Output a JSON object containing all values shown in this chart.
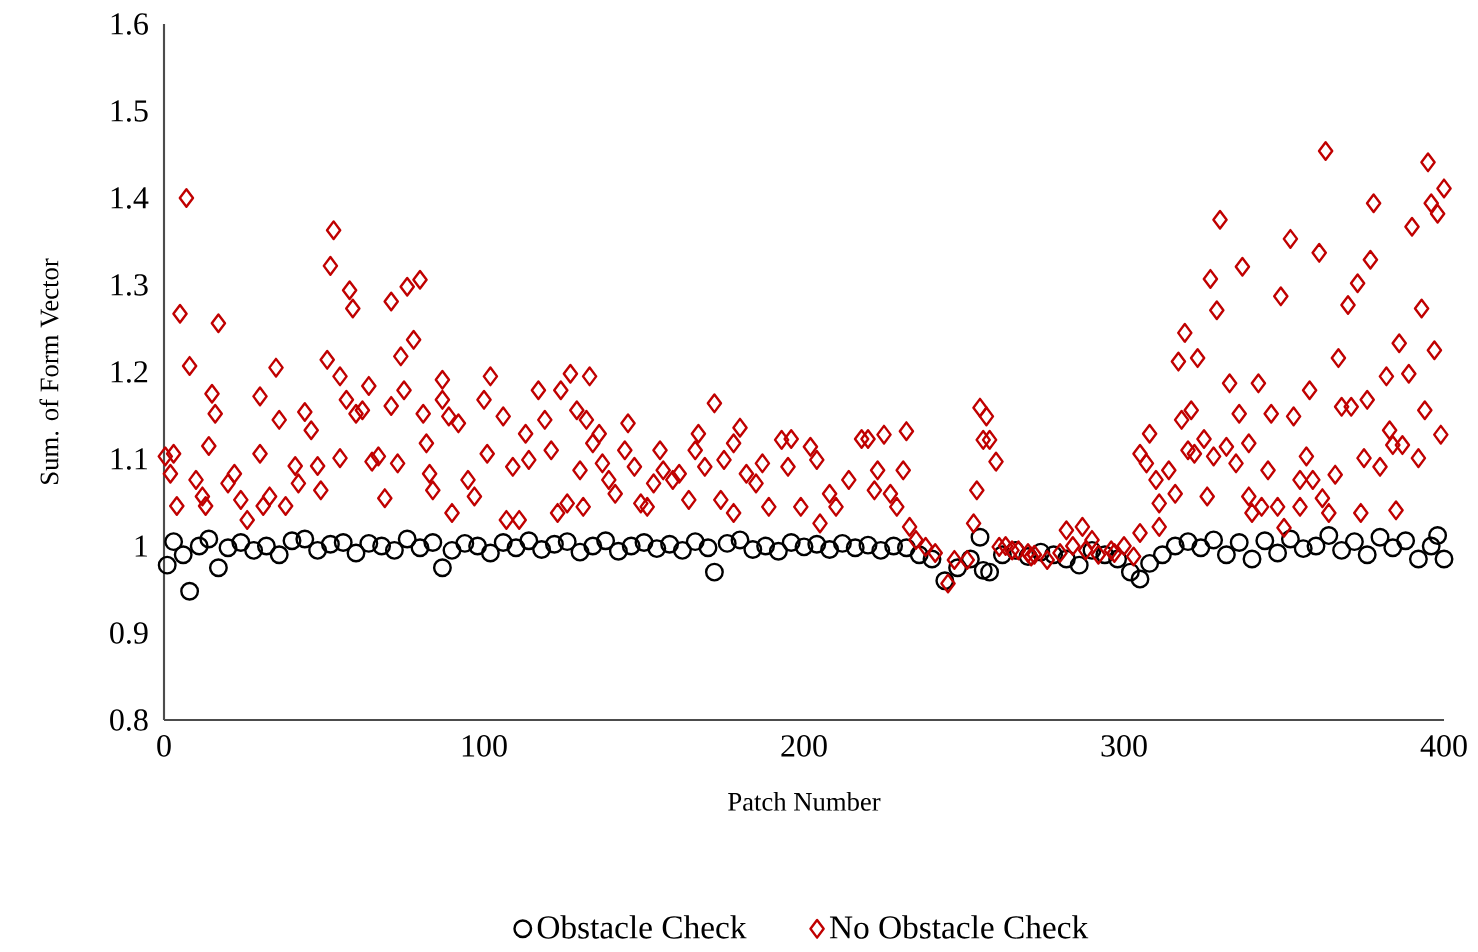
{
  "chart_data": {
    "type": "scatter",
    "xlabel": "Patch Number",
    "ylabel": "Sum. of Form Vector",
    "xlim": [
      0,
      400
    ],
    "ylim": [
      0.8,
      1.6
    ],
    "xticks": [
      0,
      100,
      200,
      300,
      400
    ],
    "yticks": [
      0.8,
      0.9,
      1,
      1.1,
      1.2,
      1.3,
      1.4,
      1.5,
      1.6
    ],
    "grid": false,
    "legend": "bottom",
    "series": [
      {
        "name": "Obstacle Check",
        "color": "#000000",
        "marker": "circle",
        "x": [
          1,
          3,
          6,
          8,
          11,
          14,
          17,
          20,
          24,
          28,
          32,
          36,
          40,
          44,
          48,
          52,
          56,
          60,
          64,
          68,
          72,
          76,
          80,
          84,
          87,
          90,
          94,
          98,
          102,
          106,
          110,
          114,
          118,
          122,
          126,
          130,
          134,
          138,
          142,
          146,
          150,
          154,
          158,
          162,
          166,
          170,
          172,
          176,
          180,
          184,
          188,
          192,
          196,
          200,
          204,
          208,
          212,
          216,
          220,
          224,
          228,
          232,
          236,
          240,
          244,
          248,
          252,
          255,
          256,
          258,
          262,
          266,
          270,
          274,
          278,
          282,
          286,
          290,
          294,
          298,
          302,
          305,
          308,
          312,
          316,
          320,
          324,
          328,
          332,
          336,
          340,
          344,
          348,
          352,
          356,
          360,
          364,
          368,
          372,
          376,
          380,
          384,
          388,
          392,
          396,
          398,
          400
        ],
        "values": [
          0.978,
          1.005,
          0.99,
          0.948,
          1.0,
          1.008,
          0.975,
          0.998,
          1.004,
          0.995,
          1.0,
          0.99,
          1.006,
          1.008,
          0.995,
          1.002,
          1.004,
          0.992,
          1.003,
          1.0,
          0.995,
          1.008,
          0.998,
          1.004,
          0.975,
          0.995,
          1.003,
          1.0,
          0.992,
          1.004,
          0.998,
          1.006,
          0.996,
          1.002,
          1.005,
          0.993,
          1.0,
          1.006,
          0.994,
          1.0,
          1.004,
          0.997,
          1.002,
          0.995,
          1.005,
          0.998,
          0.97,
          1.003,
          1.007,
          0.996,
          1.0,
          0.994,
          1.004,
          0.999,
          1.002,
          0.996,
          1.003,
          0.998,
          1.001,
          0.995,
          1.0,
          0.998,
          0.99,
          0.985,
          0.96,
          0.975,
          0.985,
          1.01,
          0.972,
          0.97,
          0.99,
          0.995,
          0.988,
          0.993,
          0.99,
          0.985,
          0.978,
          0.995,
          0.99,
          0.985,
          0.97,
          0.962,
          0.98,
          0.99,
          1.0,
          1.005,
          0.998,
          1.007,
          0.99,
          1.004,
          0.985,
          1.006,
          0.992,
          1.008,
          0.997,
          1.0,
          1.012,
          0.995,
          1.005,
          0.99,
          1.01,
          0.998,
          1.006,
          0.985,
          1.0,
          1.012,
          0.985
        ]
      },
      {
        "name": "No Obstacle Check",
        "color": "#c00000",
        "marker": "diamond",
        "x": [
          0.4,
          3,
          2,
          5,
          7,
          8,
          4,
          10,
          12,
          13,
          14,
          15,
          17,
          16,
          20,
          22,
          24,
          26,
          30,
          30,
          31,
          33,
          35,
          36,
          38,
          41,
          42,
          44,
          46,
          48,
          49,
          51,
          52,
          53,
          55,
          55,
          57,
          58,
          59,
          60,
          62,
          64,
          65,
          67,
          69,
          71,
          71,
          73,
          74,
          75,
          76,
          78,
          80,
          81,
          82,
          83,
          84,
          87,
          87,
          89,
          90,
          92,
          95,
          97,
          100,
          101,
          102,
          106,
          107,
          109,
          111,
          113,
          114,
          117,
          119,
          121,
          123,
          124,
          126,
          127,
          129,
          130,
          133,
          132,
          134,
          136,
          137,
          131,
          139,
          141,
          144,
          145,
          147,
          149,
          151,
          153,
          155,
          156,
          159,
          161,
          164,
          166,
          167,
          169,
          172,
          174,
          175,
          178,
          178,
          180,
          182,
          185,
          187,
          189,
          193,
          195,
          196,
          199,
          202,
          204,
          205,
          208,
          210,
          214,
          218,
          220,
          222,
          223,
          225,
          227,
          229,
          231,
          232,
          233,
          235,
          238,
          241,
          245,
          247,
          251,
          253,
          254,
          255,
          256,
          257,
          258,
          260,
          261,
          263,
          265,
          267,
          270,
          271,
          272,
          276,
          280,
          282,
          284,
          287,
          288,
          290,
          292,
          296,
          297,
          300,
          303,
          305,
          305,
          307,
          308,
          310,
          311,
          311,
          314,
          316,
          317,
          319,
          318,
          321,
          323,
          320,
          322,
          325,
          326,
          327,
          329,
          328,
          330,
          332,
          333,
          335,
          336,
          337,
          339,
          339,
          340,
          342,
          343,
          345,
          346,
          348,
          349,
          350,
          352,
          353,
          355,
          355,
          357,
          358,
          359,
          361,
          362,
          363,
          364,
          366,
          367,
          368,
          370,
          371,
          373,
          374,
          376,
          375,
          377,
          378,
          380,
          382,
          383,
          384,
          385,
          386,
          387,
          389,
          390,
          392,
          393,
          394,
          395,
          396,
          397,
          398,
          399,
          400
        ],
        "values": [
          1.103,
          1.106,
          1.083,
          1.267,
          1.4,
          1.207,
          1.046,
          1.076,
          1.057,
          1.046,
          1.115,
          1.175,
          1.256,
          1.152,
          1.072,
          1.083,
          1.053,
          1.03,
          1.172,
          1.106,
          1.046,
          1.057,
          1.205,
          1.145,
          1.046,
          1.092,
          1.072,
          1.154,
          1.133,
          1.092,
          1.064,
          1.214,
          1.322,
          1.363,
          1.195,
          1.101,
          1.168,
          1.294,
          1.273,
          1.152,
          1.156,
          1.184,
          1.097,
          1.103,
          1.055,
          1.281,
          1.161,
          1.095,
          1.218,
          1.179,
          1.298,
          1.237,
          1.306,
          1.152,
          1.118,
          1.083,
          1.064,
          1.191,
          1.168,
          1.149,
          1.038,
          1.141,
          1.076,
          1.057,
          1.168,
          1.106,
          1.195,
          1.149,
          1.03,
          1.091,
          1.03,
          1.129,
          1.099,
          1.179,
          1.145,
          1.11,
          1.038,
          1.179,
          1.049,
          1.198,
          1.156,
          1.087,
          1.195,
          1.145,
          1.118,
          1.129,
          1.095,
          1.045,
          1.076,
          1.06,
          1.11,
          1.141,
          1.091,
          1.049,
          1.045,
          1.072,
          1.11,
          1.087,
          1.076,
          1.083,
          1.053,
          1.11,
          1.129,
          1.091,
          1.164,
          1.053,
          1.099,
          1.118,
          1.038,
          1.136,
          1.083,
          1.072,
          1.095,
          1.045,
          1.122,
          1.091,
          1.123,
          1.045,
          1.114,
          1.099,
          1.026,
          1.06,
          1.045,
          1.076,
          1.123,
          1.123,
          1.064,
          1.087,
          1.128,
          1.06,
          1.045,
          1.087,
          1.132,
          1.022,
          1.007,
          0.999,
          0.992,
          0.957,
          0.984,
          0.984,
          1.026,
          1.064,
          1.159,
          1.122,
          1.149,
          1.122,
          1.097,
          0.999,
          1.0,
          0.995,
          0.995,
          0.992,
          0.988,
          0.99,
          0.984,
          0.992,
          1.018,
          1.0,
          1.022,
          0.995,
          1.007,
          0.99,
          0.995,
          0.992,
          1.0,
          0.988,
          1.015,
          1.106,
          1.095,
          1.129,
          1.076,
          1.049,
          1.022,
          1.087,
          1.06,
          1.212,
          1.245,
          1.145,
          1.156,
          1.216,
          1.11,
          1.106,
          1.123,
          1.057,
          1.307,
          1.271,
          1.103,
          1.375,
          1.114,
          1.187,
          1.095,
          1.152,
          1.321,
          1.057,
          1.118,
          1.038,
          1.187,
          1.045,
          1.087,
          1.152,
          1.045,
          1.287,
          1.021,
          1.353,
          1.149,
          1.045,
          1.076,
          1.103,
          1.179,
          1.076,
          1.337,
          1.055,
          1.454,
          1.038,
          1.082,
          1.216,
          1.16,
          1.277,
          1.16,
          1.302,
          1.038,
          1.168,
          1.101,
          1.329,
          1.394,
          1.091,
          1.195,
          1.133,
          1.116,
          1.041,
          1.233,
          1.116,
          1.198,
          1.367,
          1.101,
          1.273,
          1.156,
          1.441,
          1.394,
          1.225,
          1.382,
          1.128,
          1.411
        ]
      }
    ]
  }
}
